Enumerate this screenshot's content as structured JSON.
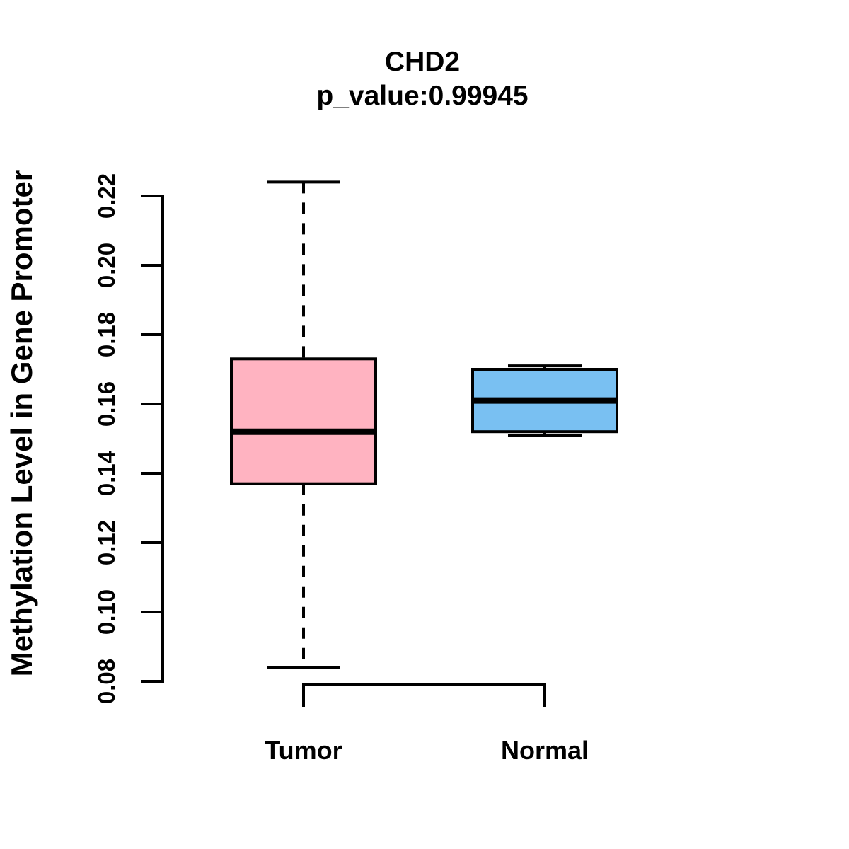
{
  "figure": {
    "background_color": "#FFFFFF",
    "text_color": "#000000"
  },
  "chart_data": {
    "type": "boxplot",
    "title": "CHD2",
    "subtitle": "p_value:0.99945",
    "ylabel": "Methylation Level in Gene Promoter",
    "xlabel": "",
    "categories": [
      "Tumor",
      "Normal"
    ],
    "y_ticks": [
      0.08,
      0.1,
      0.12,
      0.14,
      0.16,
      0.18,
      0.2,
      0.22
    ],
    "y_tick_labels": [
      "0.08",
      "0.10",
      "0.12",
      "0.14",
      "0.16",
      "0.18",
      "0.20",
      "0.22"
    ],
    "ylim": [
      0.08,
      0.224
    ],
    "grid": false,
    "legend": null,
    "axis_color": "#000000",
    "whisker_style": "dashed",
    "series": [
      {
        "name": "Tumor",
        "fill_color": "#FFB3C1",
        "border_color": "#000000",
        "min": 0.084,
        "q1": 0.137,
        "median": 0.152,
        "q3": 0.173,
        "max": 0.224
      },
      {
        "name": "Normal",
        "fill_color": "#79C0F2",
        "border_color": "#000000",
        "min": 0.151,
        "q1": 0.152,
        "median": 0.161,
        "q3": 0.17,
        "max": 0.171
      }
    ]
  }
}
